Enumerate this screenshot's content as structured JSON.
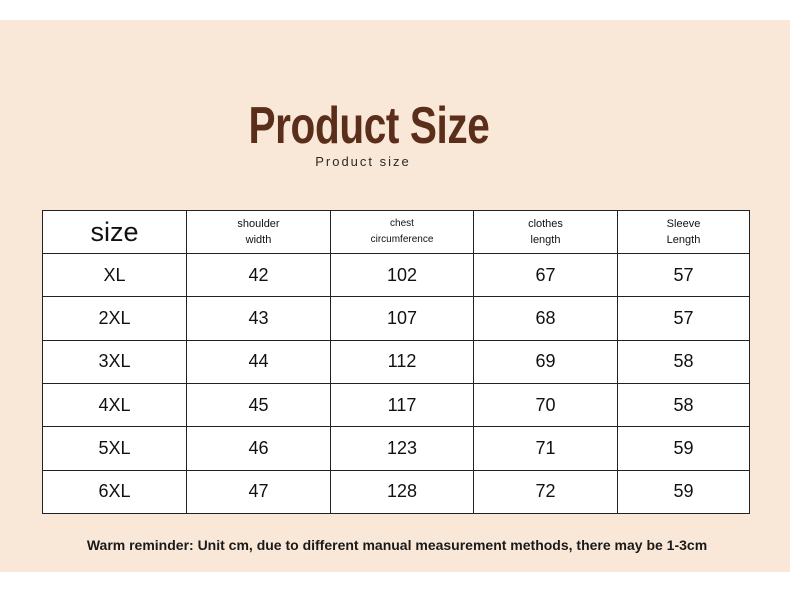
{
  "title": "Product Size",
  "subtitle": "Product size",
  "table": {
    "headers": [
      [
        "size"
      ],
      [
        "shoulder",
        "width"
      ],
      [
        "chest",
        "circumference"
      ],
      [
        "clothes",
        "length"
      ],
      [
        "Sleeve",
        "Length"
      ]
    ],
    "rows": [
      [
        "XL",
        "42",
        "102",
        "67",
        "57"
      ],
      [
        "2XL",
        "43",
        "107",
        "68",
        "57"
      ],
      [
        "3XL",
        "44",
        "112",
        "69",
        "58"
      ],
      [
        "4XL",
        "45",
        "117",
        "70",
        "58"
      ],
      [
        "5XL",
        "46",
        "123",
        "71",
        "59"
      ],
      [
        "6XL",
        "47",
        "128",
        "72",
        "59"
      ]
    ]
  },
  "reminder": "Warm reminder: Unit cm, due to different manual measurement methods, there may be 1-3cm",
  "colors": {
    "background": "#f9e8d7",
    "title": "#5a2e1a"
  }
}
